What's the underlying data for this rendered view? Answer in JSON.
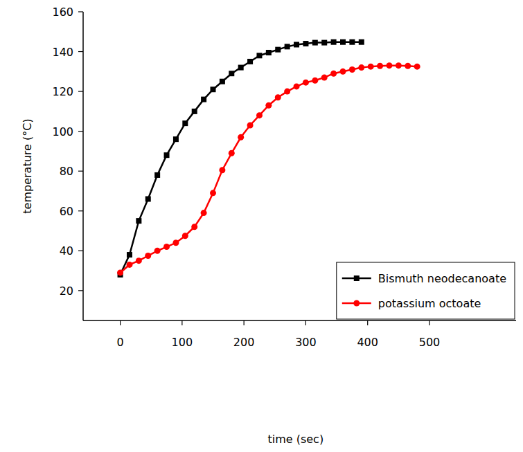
{
  "chart_data": {
    "type": "line",
    "x_label": "time (sec)",
    "y_label": "temperature (°C)",
    "xlim": [
      -60,
      640
    ],
    "ylim": [
      5,
      160
    ],
    "xticks": [
      0,
      100,
      200,
      300,
      400,
      500
    ],
    "yticks": [
      20,
      40,
      60,
      80,
      100,
      120,
      140,
      160
    ],
    "legend": "lower right",
    "grid": false,
    "series": [
      {
        "name": "Bismuth neodecanoate",
        "color": "#000000",
        "marker": "square",
        "line_style": "solid",
        "x": [
          0,
          15,
          30,
          45,
          60,
          75,
          90,
          105,
          120,
          135,
          150,
          165,
          180,
          195,
          210,
          225,
          240,
          255,
          270,
          285,
          300,
          315,
          330,
          345,
          360,
          375,
          390
        ],
        "values": [
          28,
          38,
          55,
          66,
          78,
          88,
          96,
          104,
          110,
          116,
          121,
          125,
          129,
          132,
          135,
          138,
          139.5,
          141,
          142.5,
          143.5,
          144,
          144.5,
          144.5,
          144.8,
          144.8,
          144.8,
          144.8
        ]
      },
      {
        "name": "potassium octoate",
        "color": "#ff0000",
        "marker": "circle",
        "line_style": "solid",
        "x": [
          0,
          15,
          30,
          45,
          60,
          75,
          90,
          105,
          120,
          135,
          150,
          165,
          180,
          195,
          210,
          225,
          240,
          255,
          270,
          285,
          300,
          315,
          330,
          345,
          360,
          375,
          390,
          405,
          420,
          435,
          450,
          465,
          480
        ],
        "values": [
          29,
          33,
          35,
          37.5,
          40,
          42,
          44,
          47.5,
          52,
          59,
          69,
          80.5,
          89,
          97,
          103,
          108,
          113,
          117,
          120,
          122.5,
          124.5,
          125.5,
          127,
          129,
          130,
          131,
          132,
          132.5,
          132.8,
          133,
          133,
          132.8,
          132.5
        ]
      }
    ]
  }
}
